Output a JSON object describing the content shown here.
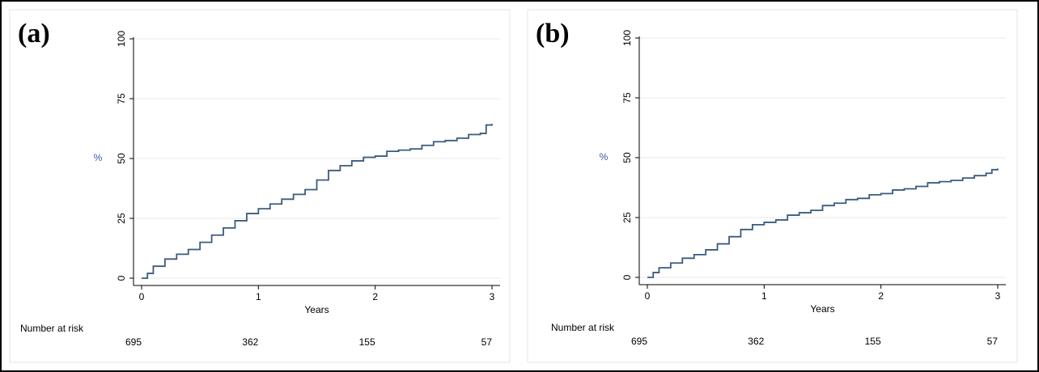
{
  "chart_data": [
    {
      "type": "line",
      "title": "(a)",
      "y_label": "%",
      "x_label": "Years",
      "step": true,
      "grid": true,
      "xlim": [
        0,
        3
      ],
      "xticks": [
        0,
        1,
        2,
        3
      ],
      "ylim": [
        0,
        100
      ],
      "yticks": [
        0,
        25,
        50,
        75,
        100
      ],
      "risk_label": "Number at risk",
      "risk_values": [
        695,
        362,
        155,
        57
      ],
      "x": [
        0,
        0.05,
        0.1,
        0.2,
        0.3,
        0.4,
        0.5,
        0.6,
        0.7,
        0.8,
        0.9,
        1.0,
        1.1,
        1.2,
        1.3,
        1.4,
        1.5,
        1.6,
        1.7,
        1.8,
        1.9,
        2.0,
        2.1,
        2.2,
        2.3,
        2.4,
        2.5,
        2.6,
        2.7,
        2.8,
        2.9,
        2.95,
        3.0
      ],
      "series": [
        {
          "color": "#3b5b7e",
          "values": [
            0,
            2,
            5,
            8,
            10,
            12,
            15,
            18,
            21,
            24,
            27,
            29,
            31,
            33,
            35,
            37,
            41,
            45,
            47,
            49,
            50.5,
            51,
            53,
            53.5,
            54,
            55.5,
            57,
            57.5,
            58.5,
            60,
            60.5,
            64,
            64.5
          ]
        }
      ]
    },
    {
      "type": "line",
      "title": "(b)",
      "y_label": "%",
      "x_label": "Years",
      "step": true,
      "grid": true,
      "xlim": [
        0,
        3
      ],
      "xticks": [
        0,
        1,
        2,
        3
      ],
      "ylim": [
        0,
        100
      ],
      "yticks": [
        0,
        25,
        50,
        75,
        100
      ],
      "risk_label": "Number at risk",
      "risk_values": [
        695,
        362,
        155,
        57
      ],
      "x": [
        0,
        0.05,
        0.1,
        0.2,
        0.3,
        0.4,
        0.5,
        0.6,
        0.7,
        0.8,
        0.9,
        1.0,
        1.1,
        1.2,
        1.3,
        1.4,
        1.5,
        1.6,
        1.7,
        1.8,
        1.9,
        2.0,
        2.1,
        2.2,
        2.3,
        2.4,
        2.5,
        2.6,
        2.7,
        2.8,
        2.9,
        2.95,
        3.0
      ],
      "series": [
        {
          "color": "#3b5b7e",
          "values": [
            0,
            2,
            4,
            6,
            8,
            9.5,
            11.5,
            14,
            17,
            20,
            22,
            23,
            24,
            26,
            27,
            28,
            30,
            31,
            32.5,
            33,
            34.5,
            35,
            36.5,
            37,
            38,
            39.5,
            40,
            40.5,
            41.5,
            42.5,
            43.5,
            45,
            45.5
          ]
        }
      ]
    }
  ]
}
